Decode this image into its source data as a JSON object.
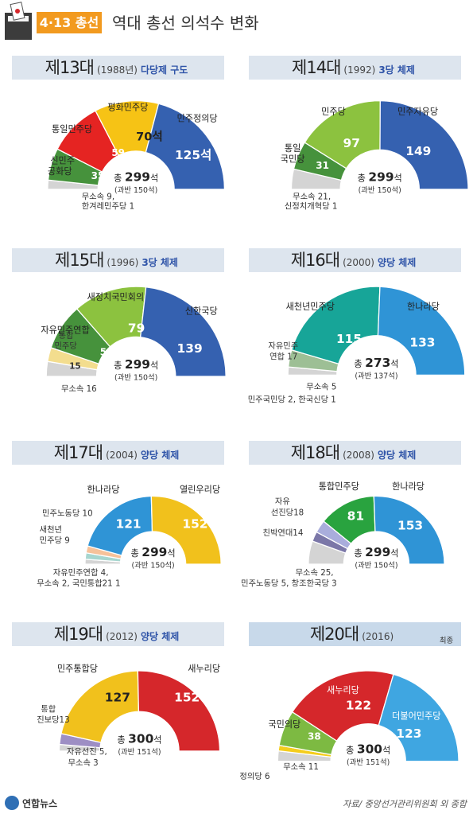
{
  "header": {
    "badge": "4·13 총선",
    "title": "역대 총선 의석수 변화",
    "update": "최종"
  },
  "chart_data": [
    {
      "type": "pie",
      "era": "제13대",
      "year": "(1988년)",
      "system": "다당제 구도",
      "total": "299",
      "majority": "(과반 150석)",
      "series": [
        {
          "name": "무소속·한겨레민주당",
          "value": 10,
          "color": "#d4d4d4"
        },
        {
          "name": "신민주공화당",
          "value": 35,
          "color": "#46923c"
        },
        {
          "name": "통일민주당",
          "value": 59,
          "color": "#e52422"
        },
        {
          "name": "평화민주당",
          "value": 70,
          "color": "#f6c315"
        },
        {
          "name": "민주정의당",
          "value": 125,
          "color": "#3561b0"
        }
      ],
      "labels": {
        "s0": "무소속 9,",
        "s0b": "한겨레민주당 1",
        "s1a": "신민주",
        "s1b": "공화당",
        "v1": "35",
        "s2": "통일민주당",
        "v2": "59",
        "s3": "평화민주당",
        "v3": "70석",
        "s4": "민주정의당",
        "v4": "125석"
      }
    },
    {
      "type": "pie",
      "era": "제14대",
      "year": "(1992)",
      "system": "3당 체제",
      "total": "299",
      "majority": "(과반 150석)",
      "series": [
        {
          "name": "무소속·신정치개혁당",
          "value": 22,
          "color": "#d4d4d4"
        },
        {
          "name": "통일국민당",
          "value": 31,
          "color": "#46923c"
        },
        {
          "name": "민주당",
          "value": 97,
          "color": "#8cc23f"
        },
        {
          "name": "민주자유당",
          "value": 149,
          "color": "#3561b0"
        }
      ],
      "labels": {
        "s0": "무소속 21,",
        "s0b": "신정치개혁당 1",
        "s1a": "통일",
        "s1b": "국민당",
        "v1": "31",
        "s2": "민주당",
        "v2": "97",
        "s3": "민주자유당",
        "v3": "149"
      }
    },
    {
      "type": "pie",
      "era": "제15대",
      "year": "(1996)",
      "system": "3당 체제",
      "total": "299",
      "majority": "(과반 150석)",
      "series": [
        {
          "name": "무소속",
          "value": 16,
          "color": "#d4d4d4"
        },
        {
          "name": "통합민주당",
          "value": 15,
          "color": "#f3dd8e"
        },
        {
          "name": "자유민주연합",
          "value": 50,
          "color": "#46923c"
        },
        {
          "name": "새정치국민회의",
          "value": 79,
          "color": "#8cc23f"
        },
        {
          "name": "신한국당",
          "value": 139,
          "color": "#3561b0"
        }
      ],
      "labels": {
        "s0": "무소속 16",
        "s1a": "통합",
        "s1b": "민주당",
        "v1": "15",
        "s2": "자유민주연합",
        "v2": "50",
        "s3": "새정치국민회의",
        "v3": "79",
        "s4": "신한국당",
        "v4": "139"
      }
    },
    {
      "type": "pie",
      "era": "제16대",
      "year": "(2000)",
      "system": "양당 체제",
      "total": "273",
      "majority": "(과반 137석)",
      "series": [
        {
          "name": "무소속·민주국민당·한국신당",
          "value": 8,
          "color": "#d4d4d4"
        },
        {
          "name": "자유민주연합",
          "value": 17,
          "color": "#9dbf95"
        },
        {
          "name": "새천년민주당",
          "value": 115,
          "color": "#17a598"
        },
        {
          "name": "한나라당",
          "value": 133,
          "color": "#2f94d6"
        }
      ],
      "labels": {
        "s0": "무소속 5",
        "s0b": "민주국민당 2, 한국신당 1",
        "s1a": "자유민주",
        "s1b": "연합 17",
        "s2": "새천년민주당",
        "v2": "115",
        "s3": "한나라당",
        "v3": "133"
      }
    },
    {
      "type": "pie",
      "era": "제17대",
      "year": "(2004)",
      "system": "양당 체제",
      "total": "299",
      "majority": "(과반 150석)",
      "series": [
        {
          "name": "자유민주연합·무소속·국민통합21",
          "value": 7,
          "color": "#d4d4d4"
        },
        {
          "name": "새천년민주당",
          "value": 9,
          "color": "#a7d6cf"
        },
        {
          "name": "민주노동당",
          "value": 10,
          "color": "#f6c29a"
        },
        {
          "name": "한나라당",
          "value": 121,
          "color": "#2f94d6"
        },
        {
          "name": "열린우리당",
          "value": 152,
          "color": "#f1c11c"
        }
      ],
      "labels": {
        "s0": "자유민주연합 4,",
        "s0b": "무소속 2, 국민통합21 1",
        "s1": "새천년",
        "s1b": "민주당 9",
        "s2": "민주노동당 10",
        "s3": "한나라당",
        "v3": "121",
        "s4": "열린우리당",
        "v4": "152"
      }
    },
    {
      "type": "pie",
      "era": "제18대",
      "year": "(2008)",
      "system": "양당 체제",
      "total": "299",
      "majority": "(과반 150석)",
      "series": [
        {
          "name": "무소속·민주노동당·창조한국당",
          "value": 33,
          "color": "#d4d4d4"
        },
        {
          "name": "친박연대",
          "value": 14,
          "color": "#7b77a8"
        },
        {
          "name": "자유선진당",
          "value": 18,
          "color": "#a9addc"
        },
        {
          "name": "통합민주당",
          "value": 81,
          "color": "#29a33f"
        },
        {
          "name": "한나라당",
          "value": 153,
          "color": "#2f94d6"
        }
      ],
      "labels": {
        "s0": "무소속 25,",
        "s0b": "민주노동당 5, 창조한국당 3",
        "s1": "친박연대14",
        "s2a": "자유",
        "s2b": "선진당18",
        "s3": "통합민주당",
        "v3": "81",
        "s4": "한나라당",
        "v4": "153"
      }
    },
    {
      "type": "pie",
      "era": "제19대",
      "year": "(2012)",
      "system": "양당 체제",
      "total": "300",
      "majority": "(과반 151석)",
      "series": [
        {
          "name": "자유선진당·무소속",
          "value": 8,
          "color": "#d4d4d4"
        },
        {
          "name": "통합진보당",
          "value": 13,
          "color": "#9d8ec4"
        },
        {
          "name": "민주통합당",
          "value": 127,
          "color": "#f1c11c"
        },
        {
          "name": "새누리당",
          "value": 152,
          "color": "#d5272b"
        }
      ],
      "labels": {
        "s0": "자유선진 5,",
        "s0b": "무소속 3",
        "s1a": "통합",
        "s1b": "진보당13",
        "s2": "민주통합당",
        "v2": "127",
        "s3": "새누리당",
        "v3": "152"
      }
    },
    {
      "type": "pie",
      "era": "제20대",
      "year": "(2016)",
      "system": "",
      "total": "300",
      "majority": "(과반 151석)",
      "series": [
        {
          "name": "무소속",
          "value": 11,
          "color": "#d4d4d4"
        },
        {
          "name": "정의당",
          "value": 6,
          "color": "#f4cd1c"
        },
        {
          "name": "국민의당",
          "value": 38,
          "color": "#7dba42"
        },
        {
          "name": "새누리당",
          "value": 122,
          "color": "#d5272b"
        },
        {
          "name": "더불어민주당",
          "value": 123,
          "color": "#3fa6e1"
        }
      ],
      "labels": {
        "s0": "무소속 11",
        "s1": "정의당 6",
        "s2": "국민의당",
        "v2": "38",
        "s3": "새누리당",
        "v3": "122",
        "s4": "더불어민주당",
        "v4": "123"
      }
    }
  ],
  "common": {
    "total_prefix": "총 ",
    "total_suffix": "석"
  },
  "footer": {
    "logo": "연합뉴스",
    "source": "자료/ 중앙선거관리위원회 외 종합"
  }
}
